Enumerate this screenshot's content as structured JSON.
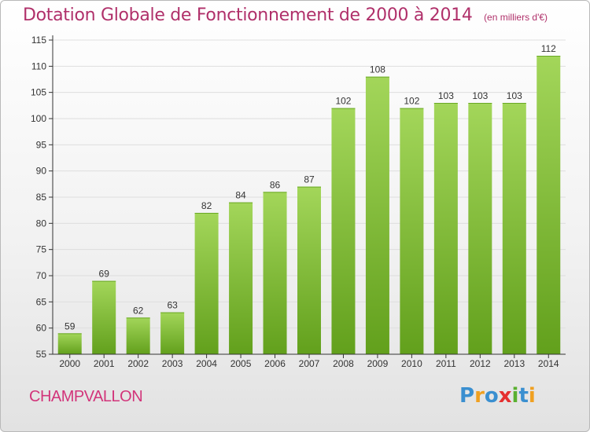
{
  "header": {
    "title": "Dotation Globale de Fonctionnement de 2000 à 2014",
    "subtitle": "(en milliers d'€)"
  },
  "footer": {
    "commune": "CHAMPVALLON",
    "logo_text": "Proxiti",
    "logo_letters": [
      {
        "char": "P",
        "color": "#3a8fd0"
      },
      {
        "char": "r",
        "color": "#f0a020"
      },
      {
        "char": "o",
        "color": "#3a8fd0"
      },
      {
        "char": "x",
        "color": "#e53030"
      },
      {
        "char": "i",
        "color": "#5ab030"
      },
      {
        "char": "t",
        "color": "#3a8fd0"
      },
      {
        "char": "i",
        "color": "#f0a020"
      }
    ]
  },
  "colors": {
    "title": "#b0306a",
    "commune": "#d2347a",
    "bar_light": "#9fd452",
    "bar_dark": "#5f9e1a",
    "grid": "#dddddd",
    "axis": "#333333"
  },
  "chart_data": {
    "type": "bar",
    "title": "Dotation Globale de Fonctionnement de 2000 à 2014",
    "subtitle": "(en milliers d'€)",
    "categories": [
      "2000",
      "2001",
      "2002",
      "2003",
      "2004",
      "2005",
      "2006",
      "2007",
      "2008",
      "2009",
      "2010",
      "2011",
      "2012",
      "2013",
      "2014"
    ],
    "values": [
      59,
      69,
      62,
      63,
      82,
      84,
      86,
      87,
      102,
      108,
      102,
      103,
      103,
      103,
      112
    ],
    "ylim": [
      55,
      115
    ],
    "yticks": [
      55,
      60,
      65,
      70,
      75,
      80,
      85,
      90,
      95,
      100,
      105,
      110,
      115
    ],
    "xlabel": "",
    "ylabel": "",
    "grid": true,
    "data_labels": true
  }
}
